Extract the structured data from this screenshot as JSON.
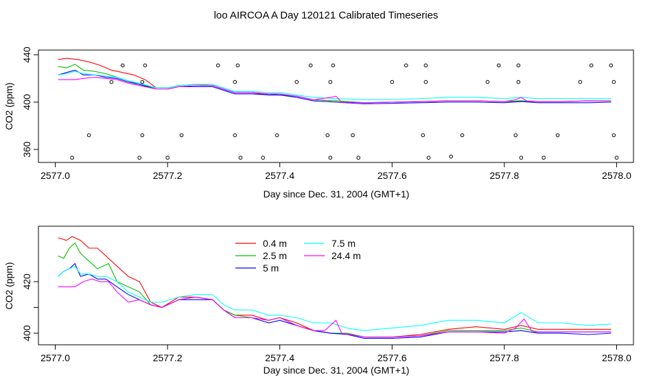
{
  "figure_title": "loo AIRCOA A  Day 120121  Calibrated Timeseries",
  "colors": {
    "0.4m": "#ff0000",
    "2.5m": "#00c000",
    "5m": "#0000ff",
    "7.5m": "#00ffff",
    "24.4m": "#ff00ff",
    "points": "#000000"
  },
  "chart_data": [
    {
      "type": "line",
      "xlabel": "Day since Dec. 31, 2004 (GMT+1)",
      "ylabel": "CO2 (ppm)",
      "xlim": [
        2576.97,
        2578.03
      ],
      "ylim": [
        349,
        444
      ],
      "xticks": [
        2577.0,
        2577.2,
        2577.4,
        2577.6,
        2577.8,
        2578.0
      ],
      "xtick_labels": [
        "2577.0",
        "2577.2",
        "2577.4",
        "2577.6",
        "2577.8",
        "2578.0"
      ],
      "yticks": [
        360,
        400,
        440
      ],
      "ytick_labels": [
        "360",
        "400",
        "440"
      ],
      "grid": false,
      "series": [
        {
          "name": "0.4 m",
          "color_key": "0.4m",
          "x": [
            2577.005,
            2577.02,
            2577.04,
            2577.06,
            2577.08,
            2577.1,
            2577.12,
            2577.14,
            2577.16,
            2577.18,
            2577.2,
            2577.22,
            2577.25,
            2577.28,
            2577.3,
            2577.32,
            2577.35,
            2577.38,
            2577.4,
            2577.43,
            2577.46,
            2577.5,
            2577.55,
            2577.6,
            2577.65,
            2577.7,
            2577.75,
            2577.8,
            2577.83,
            2577.86,
            2577.9,
            2577.95,
            2577.99
          ],
          "y": [
            436,
            437,
            436,
            434,
            431,
            427,
            425,
            423,
            419,
            412,
            412,
            414,
            415,
            414,
            411,
            408,
            408,
            406,
            406,
            405,
            402,
            401,
            399.5,
            400,
            400.5,
            401,
            401,
            400.5,
            401,
            400.5,
            400.5,
            401,
            401
          ]
        },
        {
          "name": "2.5 m",
          "color_key": "2.5m",
          "x": [
            2577.005,
            2577.02,
            2577.035,
            2577.05,
            2577.07,
            2577.09,
            2577.11,
            2577.13,
            2577.15,
            2577.18,
            2577.2,
            2577.22,
            2577.25,
            2577.28,
            2577.3,
            2577.32,
            2577.35,
            2577.38,
            2577.4,
            2577.43,
            2577.46,
            2577.5,
            2577.55,
            2577.6,
            2577.65,
            2577.7,
            2577.75,
            2577.8,
            2577.83,
            2577.86,
            2577.9,
            2577.95,
            2577.99
          ],
          "y": [
            430,
            429,
            432,
            427,
            426,
            424,
            421,
            418,
            415,
            412,
            412,
            414,
            415,
            414,
            411,
            408,
            408,
            407,
            406,
            405,
            402,
            401,
            399.5,
            400,
            400.5,
            401,
            401,
            400.5,
            401,
            400.5,
            400.5,
            401,
            401
          ]
        },
        {
          "name": "5 m",
          "color_key": "5m",
          "x": [
            2577.005,
            2577.02,
            2577.035,
            2577.05,
            2577.07,
            2577.09,
            2577.11,
            2577.13,
            2577.15,
            2577.18,
            2577.2,
            2577.22,
            2577.25,
            2577.28,
            2577.3,
            2577.32,
            2577.35,
            2577.38,
            2577.4,
            2577.43,
            2577.46,
            2577.5,
            2577.55,
            2577.6,
            2577.65,
            2577.7,
            2577.75,
            2577.8,
            2577.83,
            2577.86,
            2577.9,
            2577.95,
            2577.99
          ],
          "y": [
            423,
            425,
            427,
            423,
            423,
            421,
            420,
            417,
            415,
            411,
            411,
            413,
            413,
            413,
            410,
            407,
            407,
            406,
            406,
            404,
            401,
            400,
            398.5,
            399,
            399.5,
            400,
            400,
            399.5,
            400.5,
            399.5,
            399.5,
            399.5,
            400
          ]
        },
        {
          "name": "7.5 m",
          "color_key": "7.5m",
          "x": [
            2577.005,
            2577.02,
            2577.035,
            2577.05,
            2577.07,
            2577.09,
            2577.11,
            2577.13,
            2577.15,
            2577.18,
            2577.2,
            2577.22,
            2577.25,
            2577.28,
            2577.3,
            2577.32,
            2577.35,
            2577.38,
            2577.4,
            2577.43,
            2577.46,
            2577.5,
            2577.55,
            2577.6,
            2577.65,
            2577.7,
            2577.75,
            2577.8,
            2577.83,
            2577.86,
            2577.9,
            2577.95,
            2577.99
          ],
          "y": [
            423,
            424,
            426,
            424,
            423,
            422,
            421,
            418,
            416,
            412,
            412,
            414,
            415,
            415,
            412,
            409,
            409,
            408,
            408,
            406,
            404,
            403,
            402,
            402,
            403,
            404,
            404,
            403,
            404,
            403,
            403,
            403,
            403
          ]
        },
        {
          "name": "24.4 m",
          "color_key": "24.4m",
          "x": [
            2577.005,
            2577.02,
            2577.035,
            2577.05,
            2577.07,
            2577.09,
            2577.11,
            2577.13,
            2577.15,
            2577.18,
            2577.2,
            2577.22,
            2577.25,
            2577.28,
            2577.3,
            2577.32,
            2577.35,
            2577.38,
            2577.4,
            2577.43,
            2577.46,
            2577.49,
            2577.5,
            2577.51,
            2577.55,
            2577.6,
            2577.65,
            2577.7,
            2577.75,
            2577.8,
            2577.82,
            2577.83,
            2577.84,
            2577.86,
            2577.9,
            2577.95,
            2577.99
          ],
          "y": [
            419,
            419,
            419,
            420,
            421,
            420,
            419,
            416,
            414,
            411,
            411,
            413,
            414,
            414,
            411,
            408,
            408,
            407,
            407,
            405,
            402,
            404,
            405,
            400,
            399.5,
            400,
            400.5,
            401,
            401,
            400.5,
            402,
            404,
            401,
            400.5,
            400.5,
            401,
            401
          ]
        },
        {
          "name": "points",
          "color_key": "points",
          "style": "points",
          "x": [
            2577.03,
            2577.06,
            2577.1,
            2577.12,
            2577.15,
            2577.155,
            2577.155,
            2577.16,
            2577.2,
            2577.225,
            2577.29,
            2577.32,
            2577.32,
            2577.325,
            2577.33,
            2577.37,
            2577.395,
            2577.43,
            2577.455,
            2577.485,
            2577.49,
            2577.49,
            2577.495,
            2577.53,
            2577.54,
            2577.6,
            2577.625,
            2577.655,
            2577.66,
            2577.66,
            2577.665,
            2577.705,
            2577.725,
            2577.77,
            2577.79,
            2577.82,
            2577.825,
            2577.825,
            2577.83,
            2577.87,
            2577.895,
            2577.935,
            2577.955,
            2577.99,
            2577.995,
            2577.995,
            2578.0
          ],
          "y": [
            353,
            372,
            417,
            431,
            353,
            372,
            417,
            431,
            353,
            372,
            431,
            372,
            417,
            431,
            353,
            353,
            372,
            417,
            431,
            372,
            417,
            353,
            431,
            372,
            353,
            417,
            431,
            372,
            417,
            431,
            353,
            354,
            372,
            417,
            431,
            372,
            417,
            431,
            353,
            353,
            372,
            417,
            431,
            431,
            417,
            372,
            353
          ]
        }
      ]
    },
    {
      "type": "line",
      "xlabel": "Day since Dec. 31, 2004 (GMT+1)",
      "ylabel": "CO2 (ppm)",
      "xlim": [
        2576.97,
        2578.03
      ],
      "ylim": [
        395.5,
        441.5
      ],
      "xticks": [
        2577.0,
        2577.2,
        2577.4,
        2577.6,
        2577.8,
        2578.0
      ],
      "xtick_labels": [
        "2577.0",
        "2577.2",
        "2577.4",
        "2577.6",
        "2577.8",
        "2578.0"
      ],
      "yticks": [
        400,
        410,
        420
      ],
      "ytick_labels": [
        "400",
        "",
        "420"
      ],
      "grid": false,
      "legend": {
        "position": "top-center",
        "entries": [
          "0.4 m",
          "2.5 m",
          "5 m",
          "7.5 m",
          "24.4 m"
        ]
      },
      "series": [
        {
          "name": "0.4 m",
          "color_key": "0.4m",
          "x": [
            2577.005,
            2577.02,
            2577.03,
            2577.045,
            2577.06,
            2577.075,
            2577.09,
            2577.11,
            2577.13,
            2577.15,
            2577.17,
            2577.19,
            2577.22,
            2577.25,
            2577.28,
            2577.3,
            2577.32,
            2577.35,
            2577.38,
            2577.4,
            2577.43,
            2577.46,
            2577.49,
            2577.52,
            2577.55,
            2577.6,
            2577.65,
            2577.7,
            2577.75,
            2577.8,
            2577.83,
            2577.86,
            2577.9,
            2577.95,
            2577.99
          ],
          "y": [
            437,
            436,
            437.5,
            436,
            433,
            433,
            430,
            426,
            422,
            420,
            412,
            410,
            414,
            414,
            413,
            409,
            407,
            407,
            405,
            406,
            404,
            401,
            400,
            400,
            398.5,
            398.5,
            399.5,
            401.5,
            402.5,
            401.5,
            403,
            401.5,
            401.5,
            401.5,
            401.5
          ]
        },
        {
          "name": "2.5 m",
          "color_key": "2.5m",
          "x": [
            2577.005,
            2577.015,
            2577.025,
            2577.035,
            2577.045,
            2577.06,
            2577.075,
            2577.085,
            2577.095,
            2577.11,
            2577.13,
            2577.15,
            2577.17,
            2577.19,
            2577.22,
            2577.25,
            2577.28,
            2577.3,
            2577.32,
            2577.35,
            2577.38,
            2577.4,
            2577.43,
            2577.46,
            2577.49,
            2577.52,
            2577.55,
            2577.6,
            2577.65,
            2577.7,
            2577.75,
            2577.8,
            2577.83,
            2577.86,
            2577.9,
            2577.95,
            2577.99
          ],
          "y": [
            430,
            429,
            433,
            435,
            431,
            428,
            425,
            426,
            427,
            420,
            418,
            416,
            411,
            410,
            413,
            414,
            413,
            409,
            407,
            406,
            405,
            406,
            403,
            401,
            400,
            400,
            398.5,
            398.5,
            399,
            401,
            401,
            401,
            402,
            400.5,
            400.5,
            400.5,
            400.5
          ]
        },
        {
          "name": "5 m",
          "color_key": "5m",
          "x": [
            2577.005,
            2577.015,
            2577.025,
            2577.035,
            2577.045,
            2577.06,
            2577.075,
            2577.09,
            2577.11,
            2577.13,
            2577.15,
            2577.17,
            2577.19,
            2577.22,
            2577.25,
            2577.28,
            2577.3,
            2577.32,
            2577.35,
            2577.38,
            2577.4,
            2577.43,
            2577.46,
            2577.49,
            2577.52,
            2577.55,
            2577.6,
            2577.65,
            2577.7,
            2577.75,
            2577.8,
            2577.83,
            2577.86,
            2577.9,
            2577.95,
            2577.99
          ],
          "y": [
            422,
            424,
            425,
            427,
            422,
            423,
            421,
            421,
            418,
            415,
            413,
            411,
            410,
            413,
            413,
            413,
            409,
            406,
            406,
            404,
            405,
            403,
            401,
            400,
            399.5,
            398,
            398,
            398.5,
            400.5,
            400.5,
            400.5,
            401,
            400,
            400,
            399.5,
            400
          ]
        },
        {
          "name": "7.5 m",
          "color_key": "7.5m",
          "x": [
            2577.005,
            2577.015,
            2577.025,
            2577.035,
            2577.045,
            2577.06,
            2577.075,
            2577.09,
            2577.11,
            2577.13,
            2577.15,
            2577.17,
            2577.19,
            2577.22,
            2577.25,
            2577.28,
            2577.3,
            2577.32,
            2577.35,
            2577.38,
            2577.4,
            2577.43,
            2577.46,
            2577.49,
            2577.52,
            2577.55,
            2577.6,
            2577.65,
            2577.7,
            2577.75,
            2577.8,
            2577.83,
            2577.86,
            2577.9,
            2577.95,
            2577.99
          ],
          "y": [
            422,
            424,
            425,
            426,
            423,
            423,
            422,
            422,
            420,
            416,
            414,
            412,
            412,
            414,
            415,
            415,
            411,
            409,
            409,
            407,
            407,
            406,
            404,
            404,
            402,
            401,
            402,
            403,
            405,
            405,
            404,
            408,
            404,
            404,
            403,
            403.5
          ]
        },
        {
          "name": "24.4 m",
          "color_key": "24.4m",
          "x": [
            2577.005,
            2577.02,
            2577.035,
            2577.05,
            2577.065,
            2577.08,
            2577.095,
            2577.11,
            2577.13,
            2577.15,
            2577.17,
            2577.19,
            2577.22,
            2577.25,
            2577.28,
            2577.3,
            2577.32,
            2577.35,
            2577.38,
            2577.4,
            2577.43,
            2577.46,
            2577.48,
            2577.5,
            2577.51,
            2577.55,
            2577.6,
            2577.65,
            2577.7,
            2577.75,
            2577.8,
            2577.82,
            2577.835,
            2577.85,
            2577.9,
            2577.95,
            2577.99
          ],
          "y": [
            418,
            418,
            418,
            420,
            421,
            420,
            420,
            416,
            412,
            413,
            411,
            410,
            413,
            414,
            413,
            409,
            406,
            406,
            405,
            406,
            403,
            401,
            401,
            405,
            400,
            398.5,
            398.5,
            399,
            400.5,
            400.5,
            400,
            402,
            405.5,
            400.5,
            400.5,
            400.5,
            400.5
          ]
        }
      ]
    }
  ]
}
